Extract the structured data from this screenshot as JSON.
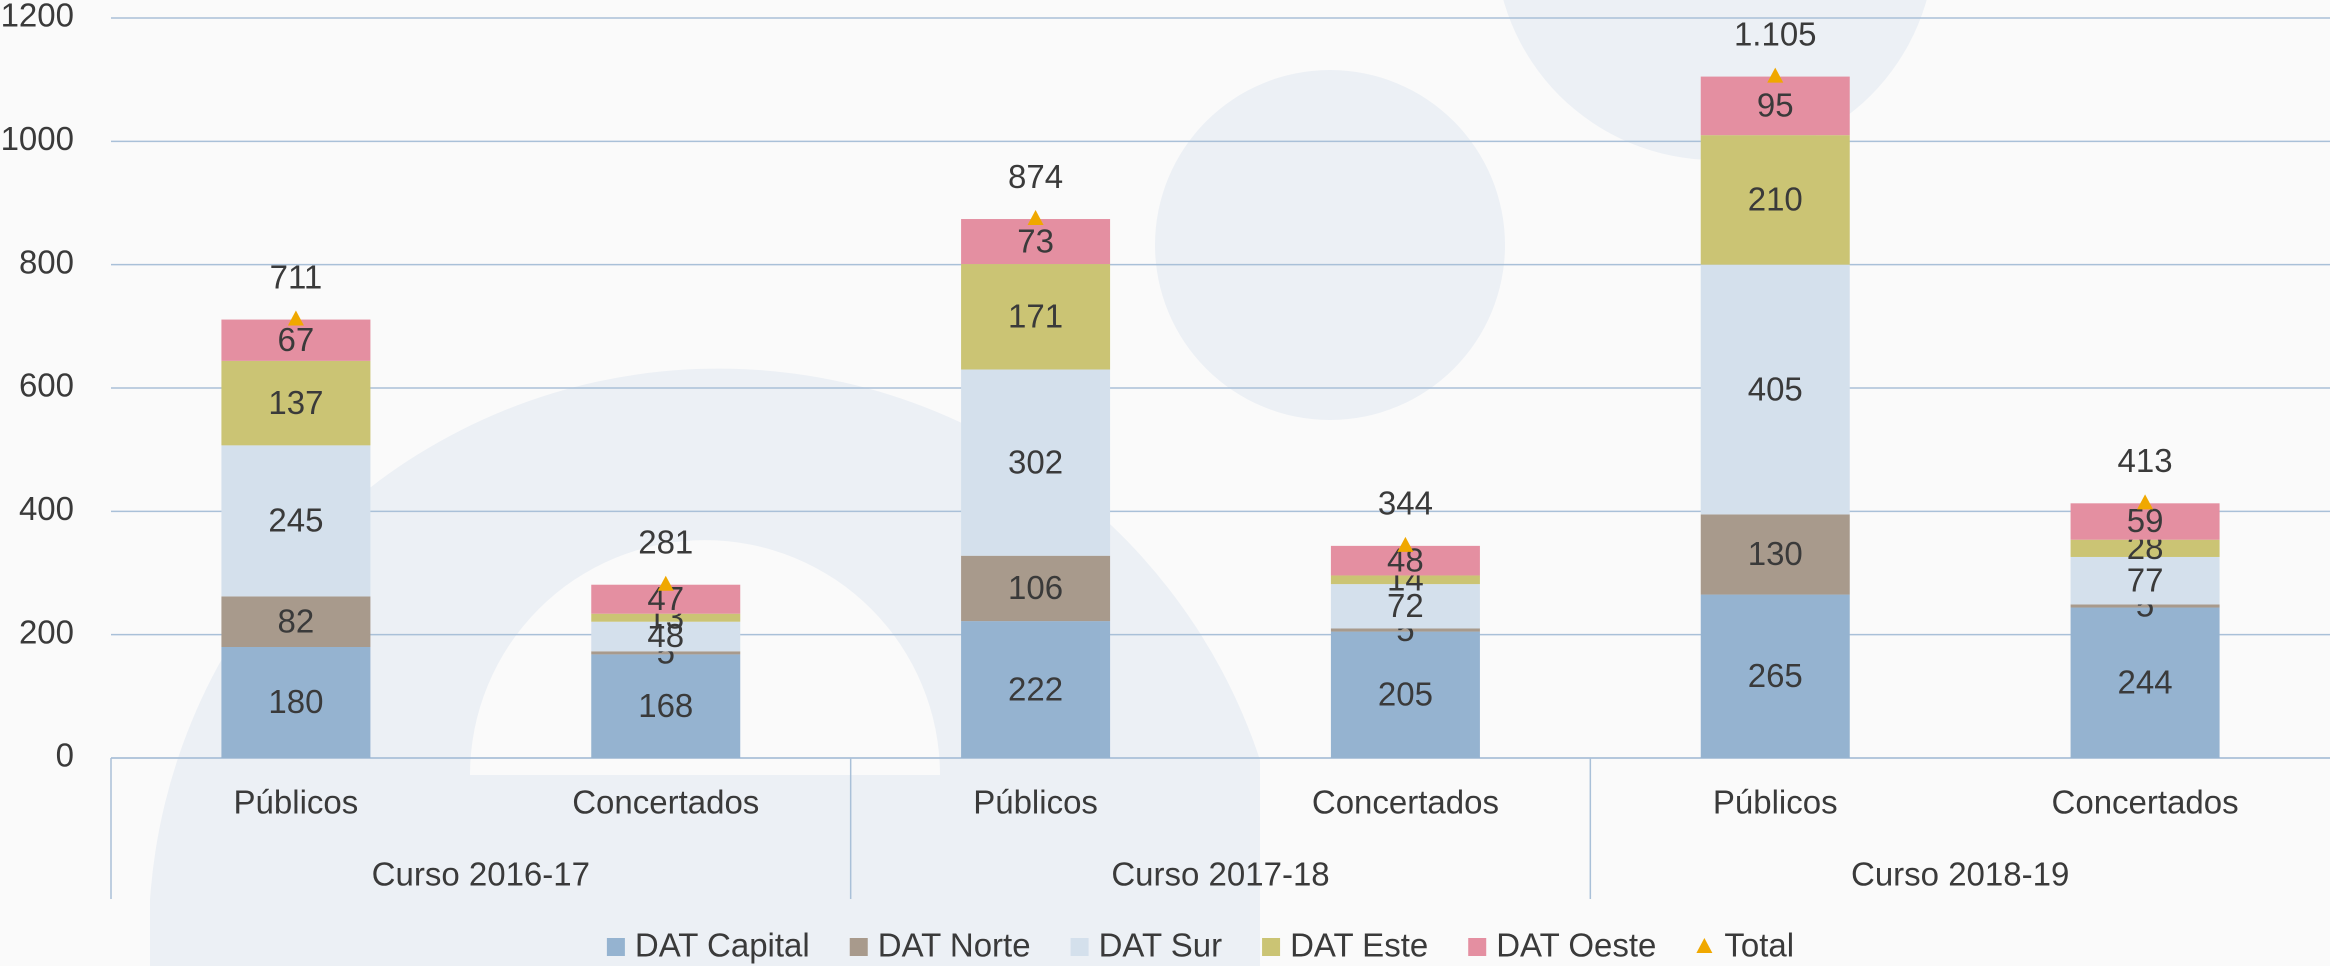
{
  "chart_data": {
    "type": "stacked_bar",
    "categories": [
      "Públicos",
      "Concertados",
      "Públicos",
      "Concertados",
      "Públicos",
      "Concertados"
    ],
    "groups": [
      "Curso 2016-17",
      "Curso 2017-18",
      "Curso 2018-19"
    ],
    "series": [
      {
        "name": "DAT Capital",
        "color": "#95b3d0",
        "values": [
          180,
          168,
          222,
          205,
          265,
          244
        ]
      },
      {
        "name": "DAT Norte",
        "color": "#a89a8c",
        "values": [
          82,
          5,
          106,
          5,
          130,
          5
        ]
      },
      {
        "name": "DAT Sur",
        "color": "#d4e0ec",
        "values": [
          245,
          48,
          302,
          72,
          405,
          77
        ]
      },
      {
        "name": "DAT Este",
        "color": "#cbc474",
        "values": [
          137,
          13,
          171,
          14,
          210,
          28
        ]
      },
      {
        "name": "DAT Oeste",
        "color": "#e48fa1",
        "values": [
          67,
          47,
          73,
          48,
          95,
          59
        ]
      },
      {
        "name": "Total",
        "type": "marker",
        "color": "#f0a800",
        "values": [
          711,
          281,
          874,
          344,
          1105,
          413
        ],
        "value_labels": [
          "711",
          "281",
          "874",
          "344",
          "1.105",
          "413"
        ]
      }
    ],
    "ylim": [
      0,
      1200
    ],
    "yticks": [
      0,
      200,
      400,
      600,
      800,
      1000,
      1200
    ],
    "grid": true,
    "legend": "bottom"
  }
}
